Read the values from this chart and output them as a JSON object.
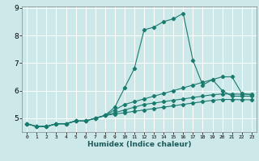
{
  "xlabel": "Humidex (Indice chaleur)",
  "ylabel": "",
  "bg_color": "#cce8e8",
  "grid_color": "#ffffff",
  "line_color": "#1a7a6e",
  "xlim": [
    -0.5,
    23.5
  ],
  "ylim": [
    4.5,
    9.05
  ],
  "yticks": [
    5,
    6,
    7,
    8,
    9
  ],
  "xticks": [
    0,
    1,
    2,
    3,
    4,
    5,
    6,
    7,
    8,
    9,
    10,
    11,
    12,
    13,
    14,
    15,
    16,
    17,
    18,
    19,
    20,
    21,
    22,
    23
  ],
  "series": [
    {
      "x": [
        0,
        1,
        2,
        3,
        4,
        5,
        6,
        7,
        8,
        9,
        10,
        11,
        12,
        13,
        14,
        15,
        16,
        17,
        18,
        19,
        20,
        21,
        22,
        23
      ],
      "y": [
        4.8,
        4.7,
        4.7,
        4.8,
        4.8,
        4.9,
        4.9,
        5.0,
        5.1,
        5.4,
        6.1,
        6.8,
        8.2,
        8.3,
        8.5,
        8.6,
        8.8,
        7.1,
        6.2,
        6.4,
        6.0,
        5.8,
        5.8,
        5.8
      ]
    },
    {
      "x": [
        0,
        1,
        2,
        3,
        4,
        5,
        6,
        7,
        8,
        9,
        10,
        11,
        12,
        13,
        14,
        15,
        16,
        17,
        18,
        19,
        20,
        21,
        22,
        23
      ],
      "y": [
        4.8,
        4.7,
        4.7,
        4.8,
        4.8,
        4.9,
        4.9,
        5.0,
        5.1,
        5.3,
        5.5,
        5.6,
        5.7,
        5.8,
        5.9,
        6.0,
        6.1,
        6.2,
        6.3,
        6.4,
        6.5,
        6.5,
        5.9,
        5.85
      ]
    },
    {
      "x": [
        0,
        1,
        2,
        3,
        4,
        5,
        6,
        7,
        8,
        9,
        10,
        11,
        12,
        13,
        14,
        15,
        16,
        17,
        18,
        19,
        20,
        21,
        22,
        23
      ],
      "y": [
        4.8,
        4.7,
        4.7,
        4.8,
        4.8,
        4.9,
        4.9,
        5.0,
        5.1,
        5.2,
        5.3,
        5.4,
        5.5,
        5.55,
        5.6,
        5.65,
        5.7,
        5.75,
        5.8,
        5.85,
        5.88,
        5.88,
        5.87,
        5.87
      ]
    },
    {
      "x": [
        0,
        1,
        2,
        3,
        4,
        5,
        6,
        7,
        8,
        9,
        10,
        11,
        12,
        13,
        14,
        15,
        16,
        17,
        18,
        19,
        20,
        21,
        22,
        23
      ],
      "y": [
        4.8,
        4.7,
        4.7,
        4.8,
        4.8,
        4.9,
        4.9,
        5.0,
        5.1,
        5.15,
        5.2,
        5.25,
        5.3,
        5.35,
        5.4,
        5.45,
        5.5,
        5.55,
        5.6,
        5.65,
        5.68,
        5.68,
        5.67,
        5.67
      ]
    }
  ]
}
